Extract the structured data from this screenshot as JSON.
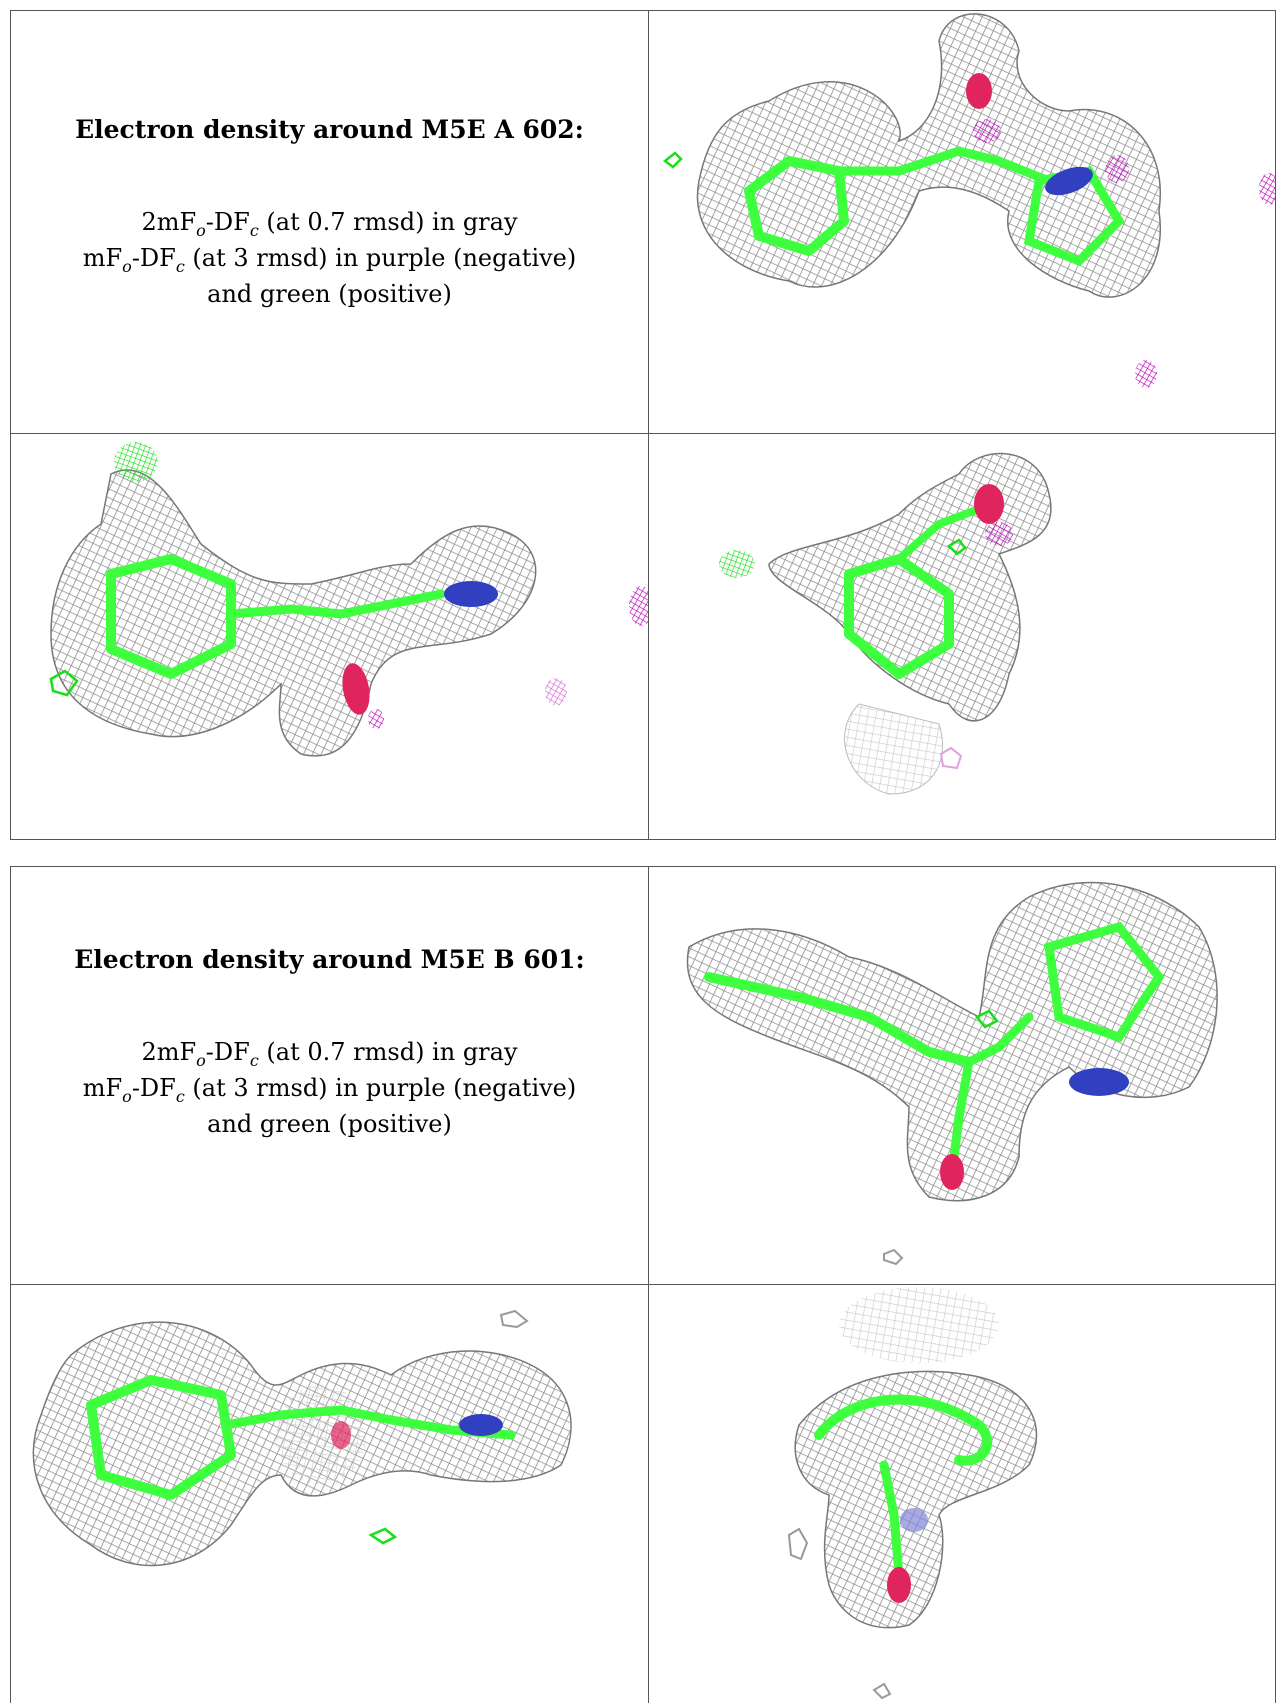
{
  "figures": [
    {
      "title": "Electron density around M5E A 602:",
      "legend": [
        {
          "pre": "2mF",
          "sub1": "o",
          "mid": "-DF",
          "sub2": "c",
          "post": " (at 0.7 rmsd) in gray"
        },
        {
          "pre": "mF",
          "sub1": "o",
          "mid": "-DF",
          "sub2": "c",
          "post": " (at 3 rmsd) in purple (negative)"
        },
        {
          "text": "and green (positive)"
        }
      ]
    },
    {
      "title": "Electron density around M5E B 601:",
      "legend": [
        {
          "pre": "2mF",
          "sub1": "o",
          "mid": "-DF",
          "sub2": "c",
          "post": " (at 0.7 rmsd) in gray"
        },
        {
          "pre": "mF",
          "sub1": "o",
          "mid": "-DF",
          "sub2": "c",
          "post": " (at 3 rmsd) in purple (negative)"
        },
        {
          "text": "and green (positive)"
        }
      ]
    }
  ],
  "colors": {
    "mesh_gray": "#9a9a9a",
    "carbon_green": "#3dff3d",
    "positive_green": "#22ee22",
    "negative_purple": "#cc00cc",
    "oxygen_red": "#e0245e",
    "nitrogen_blue": "#3040c0",
    "border": "#555555"
  }
}
